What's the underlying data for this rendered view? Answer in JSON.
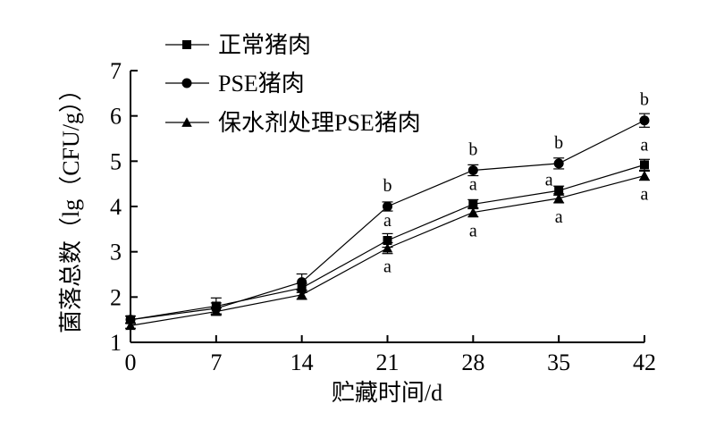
{
  "chart_data": {
    "type": "line",
    "title": "",
    "xlabel": "贮藏时间/d",
    "ylabel": "菌落总数（lg（CFU/g））",
    "x": [
      0,
      7,
      14,
      21,
      28,
      35,
      42
    ],
    "x_tick_labels": [
      "0",
      "7",
      "14",
      "21",
      "28",
      "35",
      "42"
    ],
    "y_tick_labels": [
      "1",
      "2",
      "3",
      "4",
      "5",
      "6",
      "7"
    ],
    "xlim": [
      0,
      42
    ],
    "ylim": [
      1,
      7
    ],
    "grid": false,
    "legend_position": "top-left",
    "series": [
      {
        "name": "正常猪肉",
        "marker": "square",
        "values": [
          1.5,
          1.8,
          2.2,
          3.25,
          4.05,
          4.35,
          4.92
        ],
        "errors": [
          0.08,
          0.18,
          0.1,
          0.15,
          0.1,
          0.1,
          0.12
        ],
        "sig_labels": [
          "",
          "",
          "",
          "a",
          "a",
          "a",
          "a"
        ]
      },
      {
        "name": "PSE猪肉",
        "marker": "circle",
        "values": [
          1.5,
          1.75,
          2.33,
          4.0,
          4.8,
          4.95,
          5.9
        ],
        "errors": [
          0.08,
          0.12,
          0.18,
          0.1,
          0.12,
          0.12,
          0.15
        ],
        "sig_labels": [
          "",
          "",
          "",
          "b",
          "b",
          "b",
          "b"
        ]
      },
      {
        "name": "保水剂处理PSE猪肉",
        "marker": "triangle",
        "values": [
          1.37,
          1.68,
          2.05,
          3.08,
          3.87,
          4.18,
          4.68
        ],
        "errors": [
          0.06,
          0.08,
          0.1,
          0.12,
          0.1,
          0.1,
          0.1
        ],
        "sig_labels": [
          "",
          "",
          "",
          "a",
          "a",
          "a",
          "a"
        ]
      }
    ]
  }
}
